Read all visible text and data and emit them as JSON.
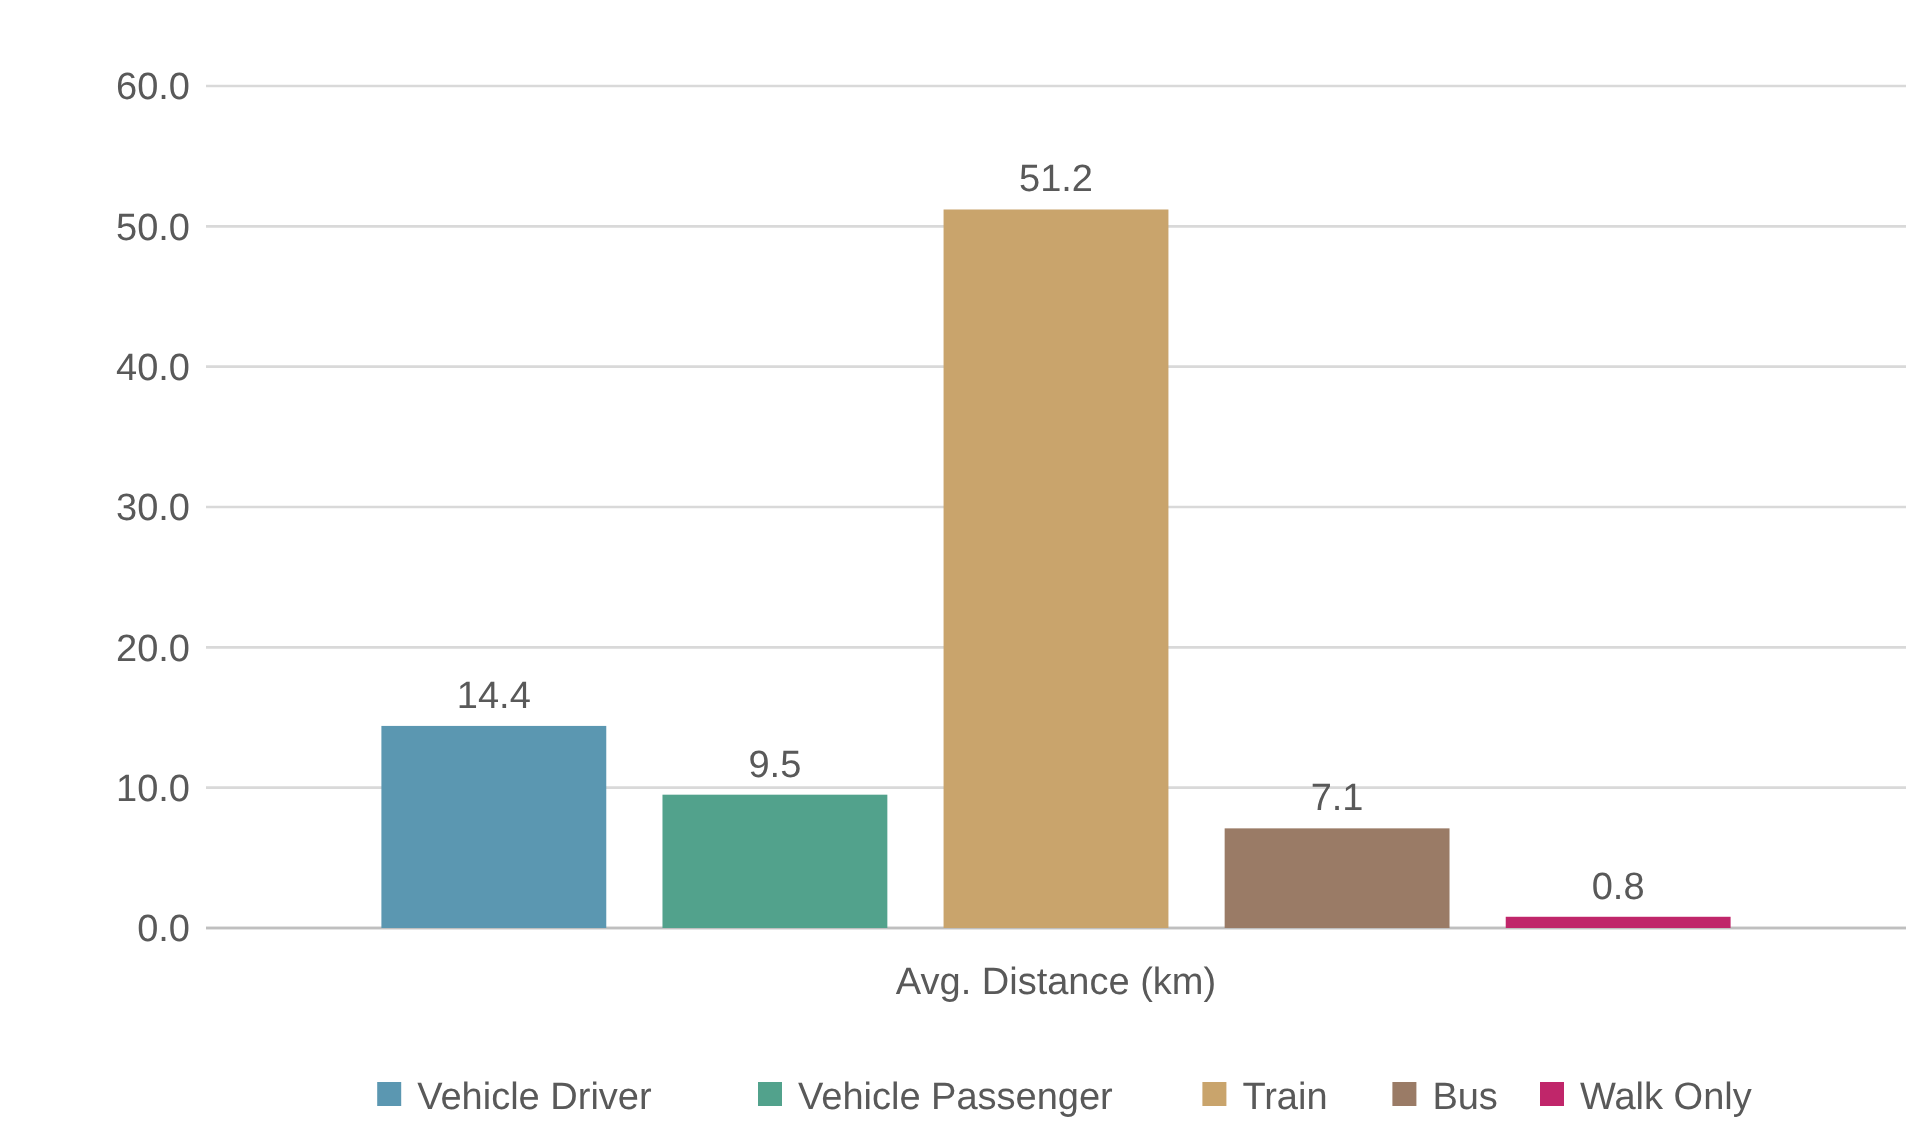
{
  "chart_data": {
    "type": "bar",
    "categories": [
      "Avg. Distance (km)"
    ],
    "series": [
      {
        "name": "Vehicle Driver",
        "color": "#5b97b1",
        "values": [
          14.4
        ]
      },
      {
        "name": "Vehicle Passenger",
        "color": "#52a28c",
        "values": [
          9.5
        ]
      },
      {
        "name": "Train",
        "color": "#c9a46c",
        "values": [
          51.2
        ]
      },
      {
        "name": "Bus",
        "color": "#9a7b66",
        "values": [
          7.1
        ]
      },
      {
        "name": "Walk Only",
        "color": "#c0266a",
        "values": [
          0.8
        ]
      }
    ],
    "ylim": [
      0,
      60
    ],
    "yticks": [
      {
        "value": 0,
        "label": "0.0"
      },
      {
        "value": 10,
        "label": "10.0"
      },
      {
        "value": 20,
        "label": "20.0"
      },
      {
        "value": 30,
        "label": "30.0"
      },
      {
        "value": 40,
        "label": "40.0"
      },
      {
        "value": 50,
        "label": "50.0"
      },
      {
        "value": 60,
        "label": "60.0"
      }
    ],
    "grid": "y",
    "data_labels": true,
    "legend": "bottom"
  }
}
